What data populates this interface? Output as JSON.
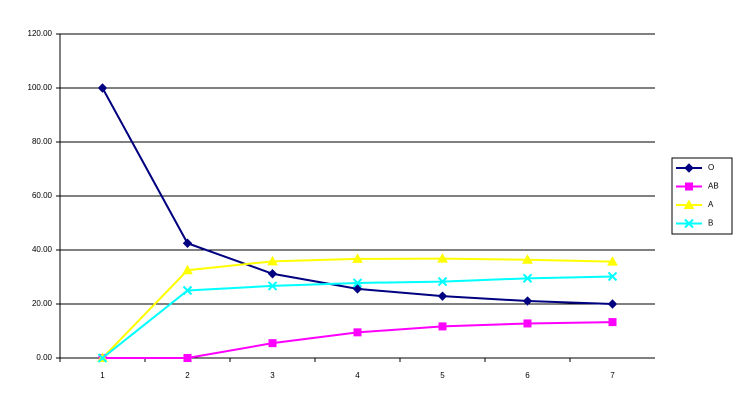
{
  "chart_data": {
    "type": "line",
    "categories": [
      "1",
      "2",
      "3",
      "4",
      "5",
      "6",
      "7"
    ],
    "series": [
      {
        "name": "O",
        "color": "#000080",
        "marker": "diamond",
        "values": [
          100,
          42.5,
          31.2,
          25.6,
          22.9,
          21.1,
          20.0
        ]
      },
      {
        "name": "AB",
        "color": "#ff00ff",
        "marker": "square",
        "values": [
          0,
          0,
          5.5,
          9.5,
          11.7,
          12.8,
          13.3
        ]
      },
      {
        "name": "A",
        "color": "#ffff00",
        "marker": "triangle",
        "values": [
          0,
          32.5,
          35.8,
          36.7,
          36.8,
          36.4,
          35.7
        ]
      },
      {
        "name": "B",
        "color": "#00ffff",
        "marker": "x",
        "values": [
          0,
          25.0,
          26.7,
          27.8,
          28.3,
          29.5,
          30.2
        ]
      }
    ],
    "ylim": [
      0,
      120
    ],
    "yticks": [
      {
        "value": 0,
        "label": "0.00"
      },
      {
        "value": 20,
        "label": "20.00"
      },
      {
        "value": 40,
        "label": "40.00"
      },
      {
        "value": 60,
        "label": "60.00"
      },
      {
        "value": 80,
        "label": "80.00"
      },
      {
        "value": 100,
        "label": "100.00"
      },
      {
        "value": 120,
        "label": "120.00"
      }
    ],
    "grid": true,
    "legend": "right"
  }
}
